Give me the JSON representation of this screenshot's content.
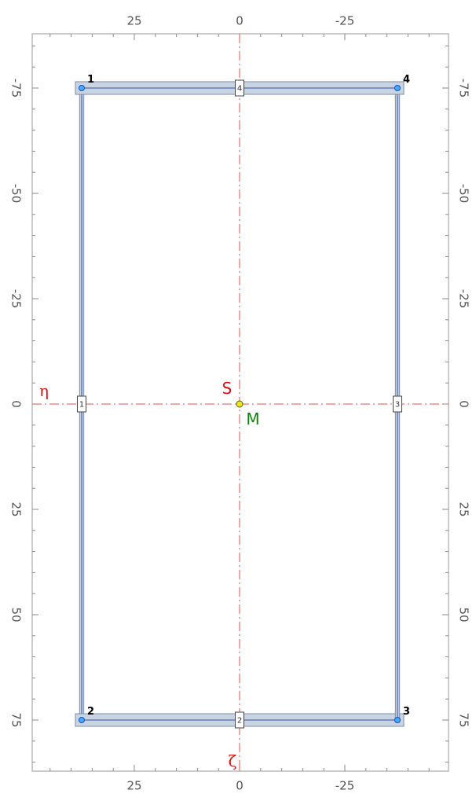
{
  "colors": {
    "frame": "#9a9a9a",
    "tick": "#8a8a8a",
    "tick_label": "#555555",
    "axis_line": "#e05050",
    "eta_label": "#e01010",
    "zeta_label": "#e01010",
    "centroid_label": "#e01010",
    "shear_center_label": "#108010",
    "element_fill": "#c8d4e2",
    "element_edge": "#8090a8",
    "centerline": "#3050a0",
    "node_fill": "#4aa8ff",
    "node_stroke": "#1050c0",
    "centroid_fill": "#e8e820",
    "centroid_stroke": "#606000"
  },
  "axes": {
    "eta_label": "η",
    "zeta_label": "ζ",
    "eta_range": [
      -87.5,
      49.5
    ],
    "zeta_range": [
      -85,
      89.5
    ],
    "eta_reversed": true,
    "top_ticks": [
      {
        "value": 25,
        "label": "25"
      },
      {
        "value": 0,
        "label": "0"
      },
      {
        "value": -25,
        "label": "-25"
      }
    ],
    "bottom_ticks": [
      {
        "value": 25,
        "label": "25"
      },
      {
        "value": 0,
        "label": "0"
      },
      {
        "value": -25,
        "label": "-25"
      }
    ],
    "left_ticks": [
      {
        "value": -75,
        "label": "-75"
      },
      {
        "value": -50,
        "label": "-50"
      },
      {
        "value": -25,
        "label": "-25"
      },
      {
        "value": 0,
        "label": "0"
      },
      {
        "value": 25,
        "label": "25"
      },
      {
        "value": 50,
        "label": "50"
      },
      {
        "value": 75,
        "label": "75"
      }
    ],
    "right_ticks": [
      {
        "value": -75,
        "label": "-75"
      },
      {
        "value": -50,
        "label": "-50"
      },
      {
        "value": -25,
        "label": "-25"
      },
      {
        "value": 0,
        "label": "0"
      },
      {
        "value": 25,
        "label": "25"
      },
      {
        "value": 50,
        "label": "50"
      },
      {
        "value": 75,
        "label": "75"
      }
    ],
    "minor_step": 5
  },
  "nodes": [
    {
      "id": "1",
      "eta": 37.5,
      "zeta": -75
    },
    {
      "id": "2",
      "eta": 37.5,
      "zeta": 75
    },
    {
      "id": "3",
      "eta": -37.5,
      "zeta": 75
    },
    {
      "id": "4",
      "eta": -37.5,
      "zeta": -75
    }
  ],
  "elements": [
    {
      "id": "1",
      "from": "1",
      "to": "2",
      "thickness": 1.0
    },
    {
      "id": "2",
      "from": "2",
      "to": "3",
      "thickness": 3.0
    },
    {
      "id": "3",
      "from": "3",
      "to": "4",
      "thickness": 1.0
    },
    {
      "id": "4",
      "from": "4",
      "to": "1",
      "thickness": 3.0
    }
  ],
  "centroid": {
    "label": "S",
    "eta": 0,
    "zeta": 0
  },
  "shear_center": {
    "label": "M",
    "eta": 0,
    "zeta": 0
  }
}
